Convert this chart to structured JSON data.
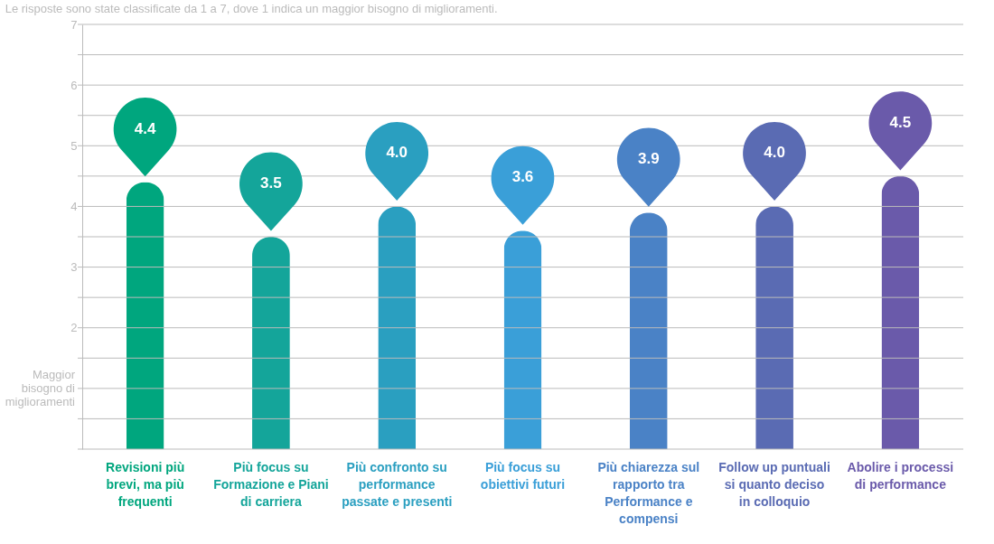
{
  "chart_data": {
    "type": "bar",
    "subtitle": "Le risposte sono state classificate da 1 a 7, dove 1 indica un maggior bisogno di miglioramenti.",
    "categories": [
      "Revisioni più brevi, ma più frequenti",
      "Più focus su Formazione e Piani di carriera",
      "Più confronto su performance passate e presenti",
      "Più focus su obiettivi futuri",
      "Più chiarezza sul rapporto tra Performance e compensi",
      "Follow up puntuali si quanto deciso in colloquio",
      "Abolire i processi di performance"
    ],
    "values": [
      4.4,
      3.5,
      4.0,
      3.6,
      3.9,
      4.0,
      4.5
    ],
    "colors": [
      "#00a67e",
      "#14a59a",
      "#2a9fc0",
      "#3a9fd8",
      "#4a82c6",
      "#5a6bb3",
      "#6a5aaa"
    ],
    "value_labels": [
      "4.4",
      "3.5",
      "4.0",
      "3.6",
      "3.9",
      "4.0",
      "4.5"
    ],
    "ylim": [
      0,
      7
    ],
    "yticks": [
      {
        "value": 0,
        "label": null
      },
      {
        "value": 0.5,
        "label": null
      },
      {
        "value": 1,
        "label": "Maggior bisogno di miglioramenti"
      },
      {
        "value": 1.5,
        "label": null
      },
      2,
      {
        "value": 2.5,
        "label": null
      },
      3,
      {
        "value": 3.5,
        "label": null
      },
      4,
      {
        "value": 4.5,
        "label": null
      },
      5,
      {
        "value": 5.5,
        "label": null
      },
      6,
      {
        "value": 6.5,
        "label": null
      },
      7
    ],
    "grid": true
  }
}
